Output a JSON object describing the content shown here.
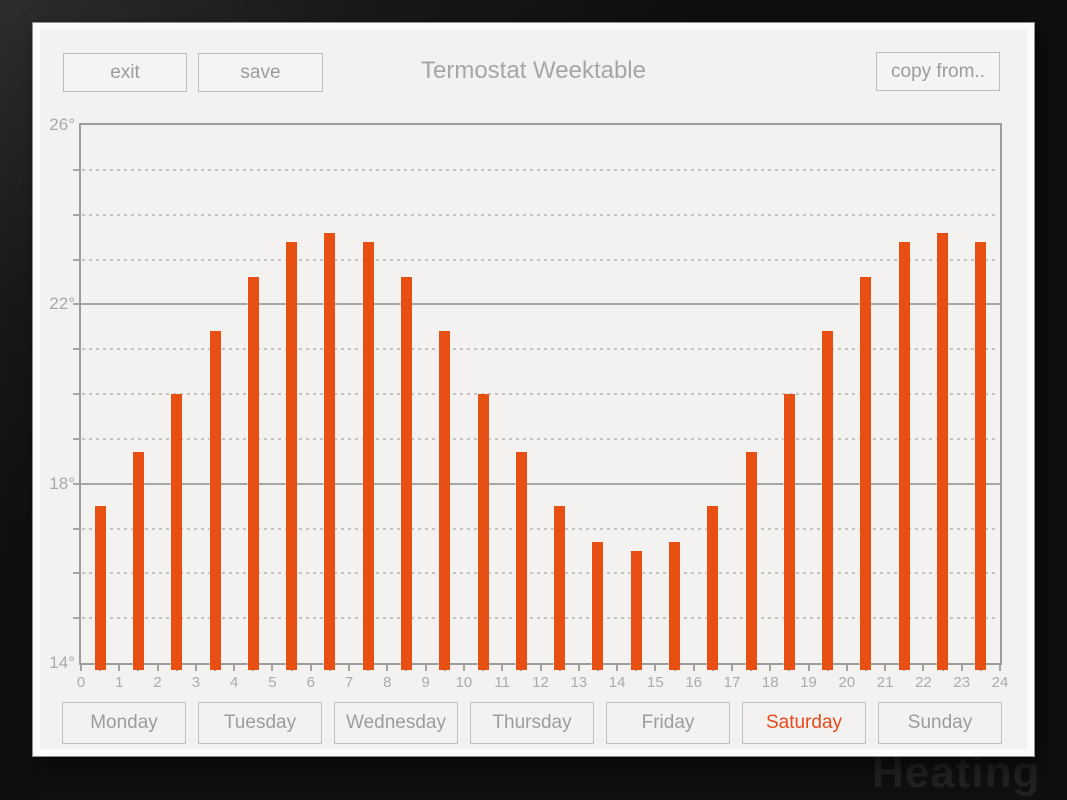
{
  "background": {
    "watermark": "Heating"
  },
  "header": {
    "exit_label": "exit",
    "save_label": "save",
    "title": "Termostat Weektable",
    "copy_from_label": "copy from.."
  },
  "chart_data": {
    "type": "bar",
    "title": "Termostat Weektable",
    "xlabel": "",
    "ylabel": "",
    "categories": [
      0,
      1,
      2,
      3,
      4,
      5,
      6,
      7,
      8,
      9,
      10,
      11,
      12,
      13,
      14,
      15,
      16,
      17,
      18,
      19,
      20,
      21,
      22,
      23
    ],
    "values": [
      17.5,
      18.7,
      20.0,
      21.4,
      22.6,
      23.4,
      23.6,
      23.4,
      22.6,
      21.4,
      20.0,
      18.7,
      17.5,
      16.7,
      16.5,
      16.7,
      17.5,
      18.7,
      20.0,
      21.4,
      22.6,
      23.4,
      23.6,
      23.4
    ],
    "xlim": [
      0,
      24
    ],
    "ylim": [
      14,
      26
    ],
    "x_tick_labels": [
      "0",
      "1",
      "2",
      "3",
      "4",
      "5",
      "6",
      "7",
      "8",
      "9",
      "10",
      "11",
      "12",
      "13",
      "14",
      "15",
      "16",
      "17",
      "18",
      "19",
      "20",
      "21",
      "22",
      "23",
      "24"
    ],
    "y_tick_labels": [
      {
        "value": 26,
        "label": "26°"
      },
      {
        "value": 22,
        "label": "22°"
      },
      {
        "value": 18,
        "label": "18°"
      },
      {
        "value": 14,
        "label": "14°"
      }
    ],
    "major_gridlines": [
      22,
      18
    ],
    "minor_gridline_step": 1,
    "grid": "dashed minor lines every 1°, solid lines at 22° and 18°",
    "legend": "none",
    "bar_color": "#e84f12"
  },
  "days": [
    {
      "label": "Monday",
      "active": false
    },
    {
      "label": "Tuesday",
      "active": false
    },
    {
      "label": "Wednesday",
      "active": false
    },
    {
      "label": "Thursday",
      "active": false
    },
    {
      "label": "Friday",
      "active": false
    },
    {
      "label": "Saturday",
      "active": true
    },
    {
      "label": "Sunday",
      "active": false
    }
  ],
  "colors": {
    "accent": "#e84f12",
    "active_day_text": "#e8481a",
    "window_bg": "#f3f2f1",
    "outer_bg": "#141414",
    "border_gray": "#c0c0c0",
    "text_gray": "#9c9c9c",
    "axis_gray": "#a6a6a6"
  }
}
